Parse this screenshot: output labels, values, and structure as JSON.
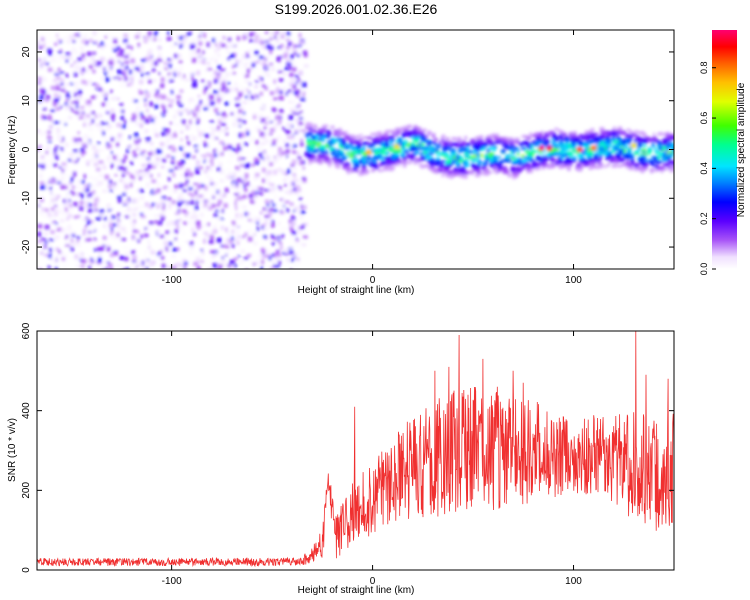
{
  "figure": {
    "title": "S199.2026.001.02.36.E26"
  },
  "chart_data": [
    {
      "type": "heatmap",
      "xlabel": "Height of straight line (km)",
      "ylabel": "Frequency (Hz)",
      "xlim": [
        -167,
        150
      ],
      "ylim": [
        -24.5,
        24.5
      ],
      "x_ticks": [
        -100,
        0,
        100
      ],
      "y_ticks": [
        -20,
        -10,
        0,
        10,
        20
      ],
      "colorbar": {
        "label": "Normalized spectral amplitude",
        "range": [
          0,
          0.95
        ],
        "ticks": [
          "0.0",
          "0.2",
          "0.4",
          "0.6",
          "0.8"
        ],
        "colors": [
          "#ffffff",
          "#f0e0ff",
          "#a855f7",
          "#5b00ff",
          "#0000ff",
          "#0080ff",
          "#00e5ff",
          "#00ff90",
          "#40ff00",
          "#e0ff00",
          "#ffc000",
          "#ff6000",
          "#ff0000",
          "#ff0070"
        ]
      },
      "regions": [
        {
          "x": [
            -167,
            -34
          ],
          "description_value": "broadband noise",
          "max_amplitude": 0.25
        },
        {
          "x": [
            -34,
            150
          ],
          "center_frequency": 0,
          "band_halfwidth": 2.5,
          "max_amplitude": 0.95
        }
      ],
      "ridge_center_freq": [
        [
          -30,
          1.5
        ],
        [
          -20,
          1.0
        ],
        [
          -10,
          -1.0
        ],
        [
          0,
          -0.5
        ],
        [
          10,
          0.5
        ],
        [
          20,
          1.5
        ],
        [
          30,
          -0.5
        ],
        [
          40,
          -1.5
        ],
        [
          50,
          -1.0
        ],
        [
          60,
          -0.5
        ],
        [
          70,
          -1.5
        ],
        [
          80,
          0.0
        ],
        [
          90,
          0.5
        ],
        [
          100,
          0.0
        ],
        [
          110,
          0.5
        ],
        [
          120,
          1.0
        ],
        [
          130,
          0.0
        ],
        [
          140,
          -0.5
        ],
        [
          150,
          0.0
        ]
      ],
      "ridge_peaks": [
        {
          "x": 84,
          "freq": 0.2,
          "amp": 0.95
        },
        {
          "x": 88,
          "freq": 0.2,
          "amp": 0.92
        },
        {
          "x": 103,
          "freq": 0.0,
          "amp": 0.85
        },
        {
          "x": 110,
          "freq": 0.3,
          "amp": 0.8
        },
        {
          "x": -2,
          "freq": -0.6,
          "amp": 0.75
        },
        {
          "x": 12,
          "freq": 0.6,
          "amp": 0.7
        },
        {
          "x": 130,
          "freq": 0.8,
          "amp": 0.7
        }
      ]
    },
    {
      "type": "line",
      "xlabel": "Height of straight line (km)",
      "ylabel": "SNR (10 * v/v)",
      "xlim": [
        -167,
        150
      ],
      "ylim": [
        0,
        600
      ],
      "x_ticks": [
        -100,
        0,
        100
      ],
      "y_ticks": [
        0,
        200,
        400,
        600
      ],
      "color": "#f03030",
      "x": [
        -167,
        -150,
        -130,
        -110,
        -90,
        -70,
        -50,
        -35,
        -25,
        -22,
        -20,
        -18,
        -10,
        0,
        10,
        20,
        30,
        40,
        50,
        60,
        70,
        80,
        90,
        100,
        110,
        120,
        130,
        140,
        150
      ],
      "y": [
        20,
        20,
        20,
        20,
        20,
        20,
        20,
        22,
        60,
        220,
        150,
        80,
        140,
        180,
        230,
        260,
        280,
        300,
        310,
        300,
        300,
        300,
        290,
        290,
        290,
        280,
        260,
        240,
        250
      ],
      "noise_amplitude": [
        10,
        10,
        10,
        10,
        10,
        10,
        10,
        10,
        40,
        40,
        40,
        60,
        80,
        90,
        110,
        130,
        150,
        160,
        160,
        150,
        140,
        130,
        110,
        100,
        100,
        110,
        140,
        150,
        150
      ],
      "spikes": [
        {
          "x": -9,
          "y": 410
        },
        {
          "x": 31,
          "y": 500
        },
        {
          "x": 38,
          "y": 510
        },
        {
          "x": 43,
          "y": 590
        },
        {
          "x": 55,
          "y": 530
        },
        {
          "x": 62,
          "y": 460
        },
        {
          "x": 70,
          "y": 500
        },
        {
          "x": 75,
          "y": 470
        },
        {
          "x": 131,
          "y": 600
        },
        {
          "x": 136,
          "y": 490
        },
        {
          "x": 147,
          "y": 480
        }
      ]
    }
  ]
}
